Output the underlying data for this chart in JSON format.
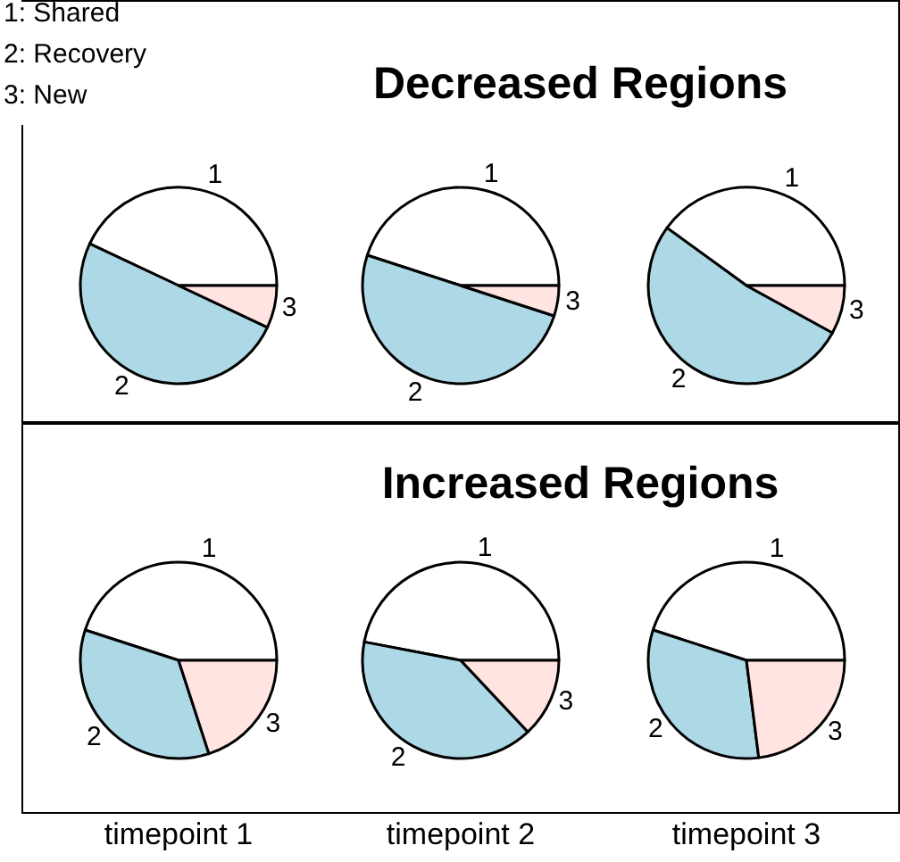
{
  "chart_data": [
    {
      "type": "pie",
      "categories": [
        "1",
        "2",
        "3"
      ],
      "values": [
        43,
        50,
        7
      ],
      "colors": [
        "#ffffff",
        "#add8e6",
        "#ffe4e1"
      ],
      "annotations": [
        "1: Shared",
        "2: Recovery",
        "3: New"
      ]
    },
    {
      "type": "pie",
      "title": "Decreased Regions",
      "categories": [
        "1",
        "2",
        "3"
      ],
      "values": [
        45,
        50,
        5
      ],
      "colors": [
        "#ffffff",
        "#add8e6",
        "#ffe4e1"
      ]
    },
    {
      "type": "pie",
      "categories": [
        "1",
        "2",
        "3"
      ],
      "values": [
        40,
        52,
        8
      ],
      "colors": [
        "#ffffff",
        "#add8e6",
        "#ffe4e1"
      ]
    },
    {
      "type": "pie",
      "xlabel": "timepoint 1",
      "categories": [
        "1",
        "2",
        "3"
      ],
      "values": [
        45,
        35,
        20
      ],
      "colors": [
        "#ffffff",
        "#add8e6",
        "#ffe4e1"
      ]
    },
    {
      "type": "pie",
      "title": "Increased Regions",
      "xlabel": "timepoint 2",
      "categories": [
        "1",
        "2",
        "3"
      ],
      "values": [
        47,
        40,
        13
      ],
      "colors": [
        "#ffffff",
        "#add8e6",
        "#ffe4e1"
      ]
    },
    {
      "type": "pie",
      "xlabel": "timepoint 3",
      "categories": [
        "1",
        "2",
        "3"
      ],
      "values": [
        45,
        32,
        23
      ],
      "colors": [
        "#ffffff",
        "#add8e6",
        "#ffe4e1"
      ]
    }
  ]
}
